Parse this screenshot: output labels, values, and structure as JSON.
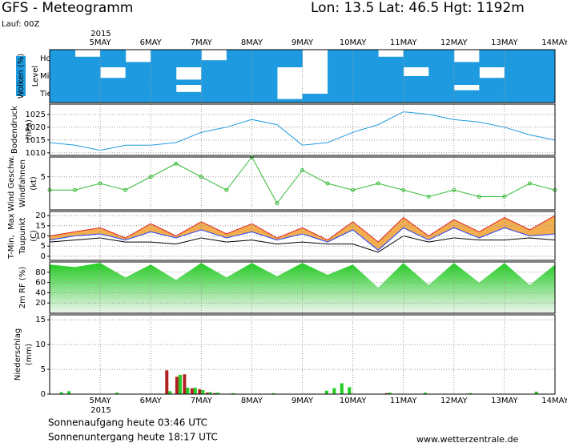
{
  "header": {
    "title": "GFS - Meteogramm",
    "location": "Lon: 13.5 Lat: 46.5 Hgt: 1192m",
    "run": "Lauf: 00Z"
  },
  "time_axis": {
    "year": "2015",
    "xlim": [
      0,
      10
    ],
    "xticks": [
      {
        "value": 1,
        "label": "5MAY"
      },
      {
        "value": 2,
        "label": "6MAY"
      },
      {
        "value": 3,
        "label": "7MAY"
      },
      {
        "value": 4,
        "label": "8MAY"
      },
      {
        "value": 5,
        "label": "9MAY"
      },
      {
        "value": 6,
        "label": "10MAY"
      },
      {
        "value": 7,
        "label": "11MAY"
      },
      {
        "value": 8,
        "label": "12MAY"
      },
      {
        "value": 9,
        "label": "13MAY"
      },
      {
        "value": 10,
        "label": "14MAY"
      }
    ],
    "x": [
      0,
      0.5,
      1,
      1.5,
      2,
      2.5,
      3,
      3.5,
      4,
      4.5,
      5,
      5.5,
      6,
      6.5,
      7,
      7.5,
      8,
      8.5,
      9,
      9.5,
      10
    ]
  },
  "chart_data": [
    {
      "type": "heatmap",
      "title": "Wolken (%)",
      "axis_title": "Level",
      "color": "#1e9be0",
      "series": [
        {
          "name": "Hoch",
          "values": [
            100,
            60,
            100,
            30,
            100,
            100,
            40,
            100,
            100,
            100,
            0,
            100,
            100,
            60,
            100,
            100,
            30,
            100,
            100,
            100
          ]
        },
        {
          "name": "Mittel",
          "values": [
            100,
            100,
            40,
            100,
            100,
            30,
            100,
            100,
            100,
            0,
            0,
            100,
            100,
            100,
            50,
            100,
            100,
            40,
            100,
            100
          ]
        },
        {
          "name": "Tief",
          "values": [
            100,
            100,
            100,
            100,
            100,
            60,
            100,
            100,
            100,
            20,
            50,
            100,
            100,
            100,
            100,
            100,
            70,
            100,
            100,
            100
          ]
        }
      ]
    },
    {
      "type": "line",
      "title": "Bodendruck",
      "unit": "(hPa)",
      "color": "#1e9be0",
      "ylim": [
        1009,
        1029
      ],
      "yticks": [
        1010,
        1015,
        1020,
        1025
      ],
      "values": [
        1014,
        1013,
        1011,
        1013,
        1013,
        1014,
        1018,
        1020,
        1023,
        1021,
        1013,
        1014,
        1018,
        1021,
        1026,
        1025,
        1023,
        1022,
        1020,
        1017,
        1015
      ]
    },
    {
      "type": "line",
      "title": "Wind Geschw.",
      "title_color": "#22aa22",
      "subtitle": "Windfahnen",
      "unit": "(kt)",
      "color": "#33bb33",
      "markers": true,
      "ylim": [
        0,
        8
      ],
      "yticks": [
        5
      ],
      "values": [
        3,
        3,
        4,
        3,
        5,
        7,
        5,
        3,
        8,
        1,
        6,
        4,
        3,
        4,
        3,
        2,
        3,
        2,
        2,
        4,
        3
      ]
    },
    {
      "type": "band",
      "unit": "(C)",
      "fill": "#f0a030",
      "ylim": [
        -2,
        22
      ],
      "yticks": [
        0,
        5,
        10,
        15,
        20
      ],
      "series": [
        {
          "name": "T-Min,",
          "color": "#2040ff",
          "values": [
            8,
            10,
            11,
            8,
            12,
            9,
            13,
            9,
            12,
            8,
            11,
            7,
            13,
            3,
            14,
            8,
            14,
            9,
            14,
            10,
            11
          ]
        },
        {
          "name": "Max",
          "color": "#e02020",
          "values": [
            10,
            12,
            14,
            9,
            16,
            10,
            17,
            11,
            16,
            9,
            14,
            8,
            17,
            7,
            19,
            10,
            18,
            12,
            19,
            13,
            20
          ]
        },
        {
          "name": "Taupunkt",
          "color": "#000000",
          "values": [
            7,
            8,
            9,
            7,
            7,
            6,
            9,
            7,
            8,
            6,
            7,
            6,
            6,
            2,
            10,
            7,
            9,
            8,
            8,
            9,
            8
          ]
        }
      ]
    },
    {
      "type": "area",
      "title": "2m RF (%)",
      "color": "#22cc22",
      "ylim": [
        0,
        100
      ],
      "yticks": [
        20,
        40,
        60,
        80
      ],
      "values": [
        95,
        90,
        98,
        70,
        95,
        65,
        98,
        70,
        98,
        72,
        98,
        75,
        95,
        50,
        98,
        55,
        98,
        60,
        98,
        55,
        95
      ]
    },
    {
      "type": "bar",
      "title": "Niederschlag",
      "unit": "(mm)",
      "ylim": [
        0,
        16
      ],
      "yticks": [
        0,
        5,
        10,
        15
      ],
      "x": [
        0.2,
        0.35,
        1.3,
        2.35,
        2.55,
        2.7,
        2.85,
        3.0,
        3.15,
        3.3,
        3.6,
        4.4,
        5.45,
        5.6,
        5.75,
        5.9,
        6.7,
        7.4,
        8.3,
        9.6
      ],
      "series": [
        {
          "color": "#b02020",
          "values": [
            0,
            0,
            0,
            4.8,
            3.5,
            4,
            1.2,
            1,
            0.3,
            0.2,
            0,
            0,
            0,
            0,
            0,
            0,
            0.2,
            0,
            0.1,
            0
          ]
        },
        {
          "color": "#22cc22",
          "values": [
            0.4,
            0.6,
            0.3,
            0.6,
            3.9,
            1.3,
            1.3,
            0.8,
            0.4,
            0.3,
            0.2,
            0.2,
            0.7,
            1.2,
            2.2,
            1.4,
            0.3,
            0.3,
            0.2,
            0.5
          ]
        }
      ]
    }
  ],
  "footer": {
    "sunrise": "Sonnenaufgang heute 03:46 UTC",
    "sunset": "Sonnenuntergang heute 18:17 UTC",
    "source": "www.wetterzentrale.de"
  }
}
